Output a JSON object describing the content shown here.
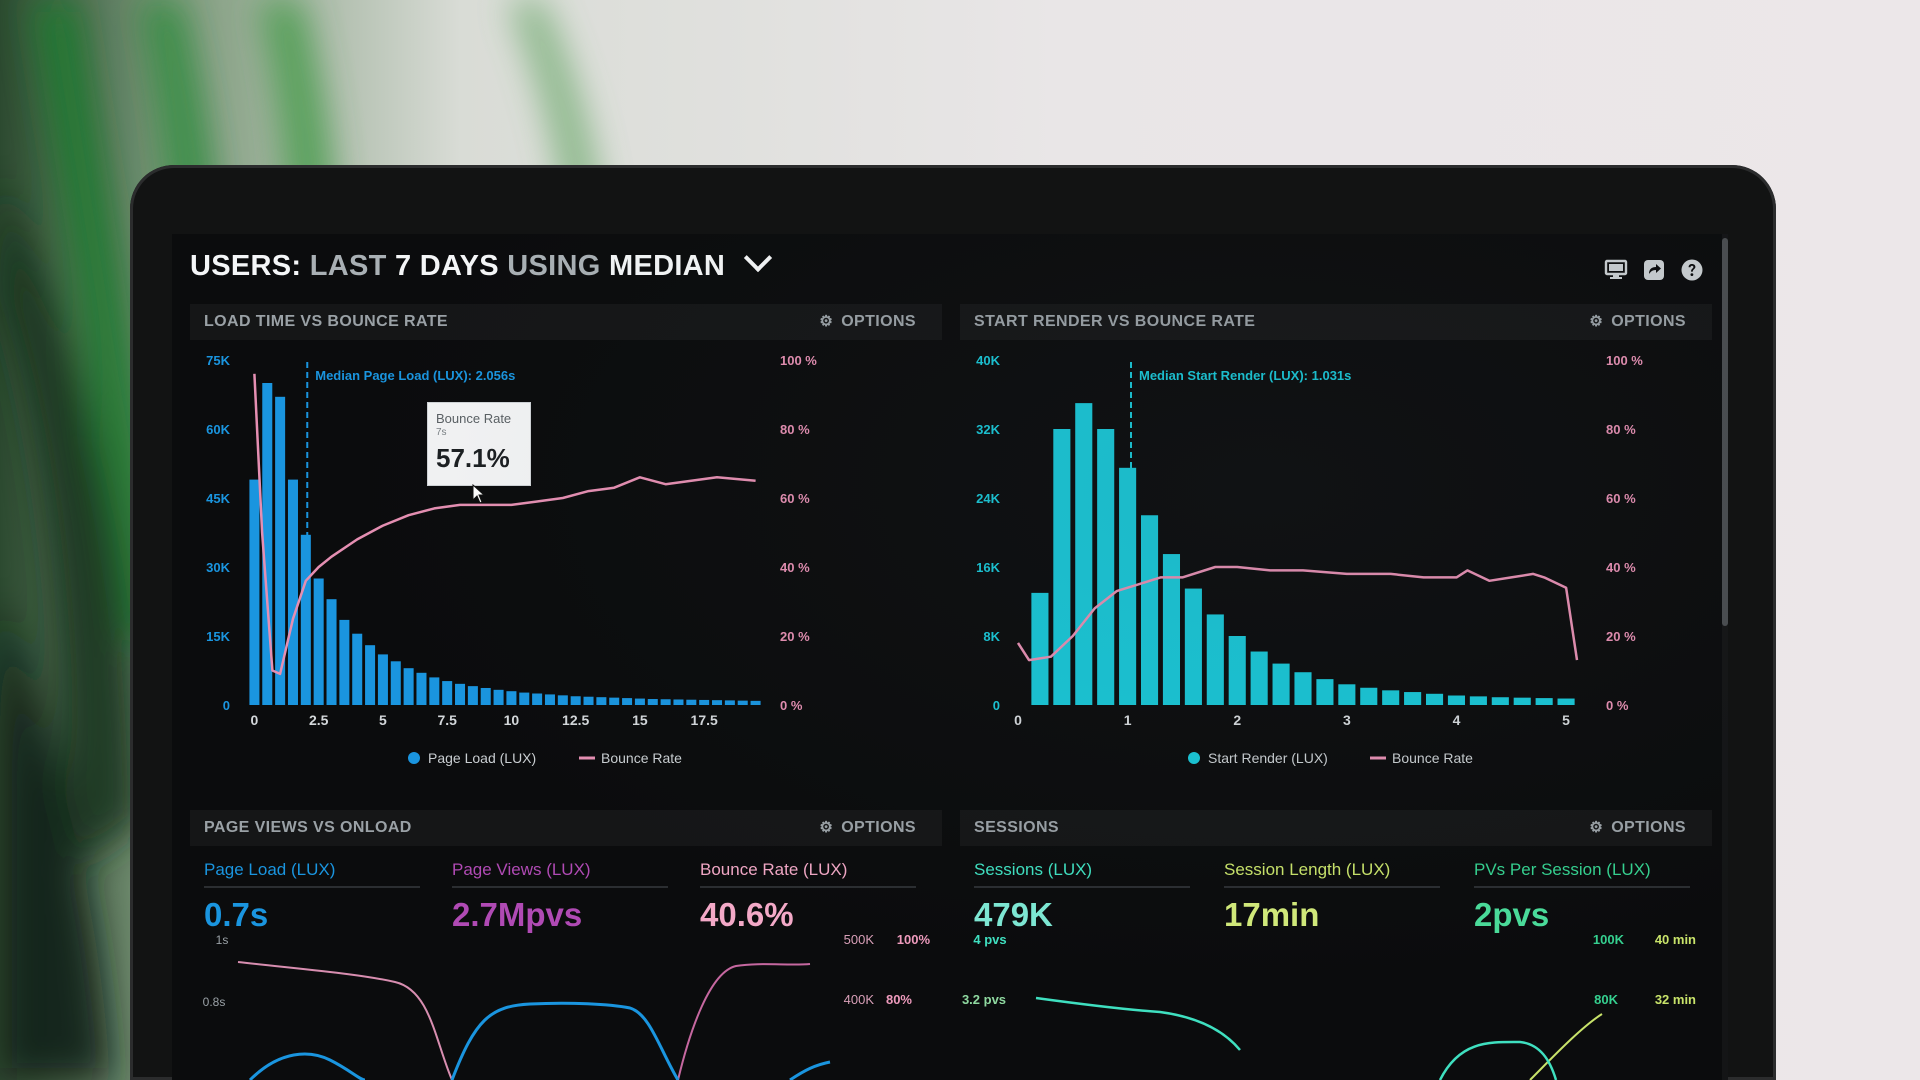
{
  "dashboard": {
    "title_parts": [
      "USERS:",
      "LAST",
      "7 DAYS",
      "USING",
      "MEDIAN"
    ],
    "icons": [
      "monitor-icon",
      "share-icon",
      "help-icon"
    ]
  },
  "colors": {
    "page_load": "#1a95df",
    "start_render": "#19c6d6",
    "bounce_rate": "#e58fb2",
    "page_views": "#b04ab4",
    "sessions": "#3fe0c0",
    "session_length": "#c8e36a",
    "pvs_per_session": "#35d08f"
  },
  "panels": {
    "load_time": {
      "title": "LOAD TIME VS BOUNCE RATE",
      "options_label": "OPTIONS",
      "median_label": "Median Page Load (LUX): 2.056s",
      "tooltip": {
        "label": "Bounce Rate",
        "sub": "7s",
        "value": "57.1%"
      },
      "legend": [
        "Page Load (LUX)",
        "Bounce Rate"
      ]
    },
    "start_render": {
      "title": "START RENDER VS BOUNCE RATE",
      "options_label": "OPTIONS",
      "median_label": "Median Start Render (LUX): 1.031s",
      "legend": [
        "Start Render (LUX)",
        "Bounce Rate"
      ]
    },
    "page_views": {
      "title": "PAGE VIEWS VS ONLOAD",
      "options_label": "OPTIONS",
      "metrics": [
        {
          "label": "Page Load (LUX)",
          "value": "0.7s"
        },
        {
          "label": "Page Views (LUX)",
          "value": "2.7Mpvs"
        },
        {
          "label": "Bounce Rate (LUX)",
          "value": "40.6%"
        }
      ],
      "left_ticks": [
        "1s",
        "0.8s"
      ],
      "right_ticks_a": [
        "500K",
        "400K"
      ],
      "right_ticks_b": [
        "100%",
        "80%"
      ]
    },
    "sessions": {
      "title": "SESSIONS",
      "options_label": "OPTIONS",
      "metrics": [
        {
          "label": "Sessions (LUX)",
          "value": "479K"
        },
        {
          "label": "Session Length (LUX)",
          "value": "17min"
        },
        {
          "label": "PVs Per Session (LUX)",
          "value": "2pvs"
        }
      ],
      "left_ticks": [
        "4 pvs",
        "3.2 pvs"
      ],
      "right_ticks_a": [
        "100K",
        "80K"
      ],
      "right_ticks_b": [
        "40 min",
        "32 min"
      ]
    }
  },
  "chart_data": [
    {
      "type": "bar",
      "title": "LOAD TIME VS BOUNCE RATE",
      "xlabel": "",
      "ylabel": "",
      "x_ticks": [
        "0",
        "2.5",
        "5",
        "7.5",
        "10",
        "12.5",
        "15",
        "17.5"
      ],
      "y_ticks": [
        "0",
        "15K",
        "30K",
        "45K",
        "60K",
        "75K"
      ],
      "y2_ticks": [
        "0 %",
        "20 %",
        "40 %",
        "60 %",
        "80 %",
        "100 %"
      ],
      "xlim": [
        -0.25,
        19.75
      ],
      "ylim": [
        0,
        75000
      ],
      "y2lim": [
        0,
        100
      ],
      "median_x": 2.056,
      "legend_position": "bottom",
      "series": [
        {
          "name": "Page Load (LUX)",
          "type": "bar",
          "x": [
            0,
            0.5,
            1,
            1.5,
            2,
            2.5,
            3,
            3.5,
            4,
            4.5,
            5,
            5.5,
            6,
            6.5,
            7,
            7.5,
            8,
            8.5,
            9,
            9.5,
            10,
            10.5,
            11,
            11.5,
            12,
            12.5,
            13,
            13.5,
            14,
            14.5,
            15,
            15.5,
            16,
            16.5,
            17,
            17.5,
            18,
            18.5,
            19,
            19.5
          ],
          "values": [
            49000,
            70000,
            67000,
            49000,
            37000,
            27500,
            23000,
            18500,
            15500,
            13000,
            11000,
            9500,
            8000,
            7000,
            6000,
            5200,
            4600,
            4100,
            3700,
            3300,
            3000,
            2700,
            2500,
            2300,
            2100,
            1900,
            1800,
            1700,
            1600,
            1500,
            1400,
            1300,
            1250,
            1200,
            1150,
            1100,
            1050,
            1000,
            950,
            900
          ]
        },
        {
          "name": "Bounce Rate",
          "type": "line",
          "axis": "right",
          "x": [
            0,
            0.3,
            0.7,
            1.0,
            1.5,
            2.0,
            2.5,
            3.0,
            4.0,
            5.0,
            6.0,
            7.0,
            8.0,
            9.0,
            10.0,
            11.0,
            12.0,
            13.0,
            14.0,
            15.0,
            16.0,
            17.0,
            18.0,
            19.5
          ],
          "values": [
            96,
            50,
            10,
            9,
            25,
            36,
            40,
            43,
            48,
            52,
            55,
            57,
            58,
            58,
            58,
            59,
            60,
            62,
            63,
            66,
            64,
            65,
            66,
            65
          ]
        }
      ]
    },
    {
      "type": "bar",
      "title": "START RENDER VS BOUNCE RATE",
      "xlabel": "",
      "ylabel": "",
      "x_ticks": [
        "0",
        "1",
        "2",
        "3",
        "4",
        "5"
      ],
      "y_ticks": [
        "0",
        "8K",
        "16K",
        "24K",
        "32K",
        "40K"
      ],
      "y2_ticks": [
        "0 %",
        "20 %",
        "40 %",
        "60 %",
        "80 %",
        "100 %"
      ],
      "xlim": [
        0,
        5.2
      ],
      "ylim": [
        0,
        40000
      ],
      "y2lim": [
        0,
        100
      ],
      "median_x": 1.031,
      "legend_position": "bottom",
      "series": [
        {
          "name": "Start Render (LUX)",
          "type": "bar",
          "x": [
            0.2,
            0.4,
            0.6,
            0.8,
            1.0,
            1.2,
            1.4,
            1.6,
            1.8,
            2.0,
            2.2,
            2.4,
            2.6,
            2.8,
            3.0,
            3.2,
            3.4,
            3.6,
            3.8,
            4.0,
            4.2,
            4.4,
            4.6,
            4.8,
            5.0
          ],
          "values": [
            13000,
            32000,
            35000,
            32000,
            27500,
            22000,
            17500,
            13500,
            10500,
            8000,
            6200,
            4800,
            3800,
            3000,
            2400,
            2000,
            1700,
            1500,
            1300,
            1100,
            1000,
            900,
            850,
            800,
            750
          ]
        },
        {
          "name": "Bounce Rate",
          "type": "line",
          "axis": "right",
          "x": [
            0,
            0.1,
            0.3,
            0.5,
            0.7,
            0.9,
            1.1,
            1.3,
            1.5,
            1.8,
            2.0,
            2.3,
            2.6,
            3.0,
            3.4,
            3.7,
            4.0,
            4.1,
            4.3,
            4.5,
            4.7,
            4.8,
            5.0,
            5.1
          ],
          "values": [
            18,
            13,
            14,
            20,
            28,
            33,
            35,
            37,
            37,
            40,
            40,
            39,
            39,
            38,
            38,
            37,
            37,
            39,
            36,
            37,
            38,
            37,
            34,
            13
          ]
        }
      ]
    }
  ]
}
